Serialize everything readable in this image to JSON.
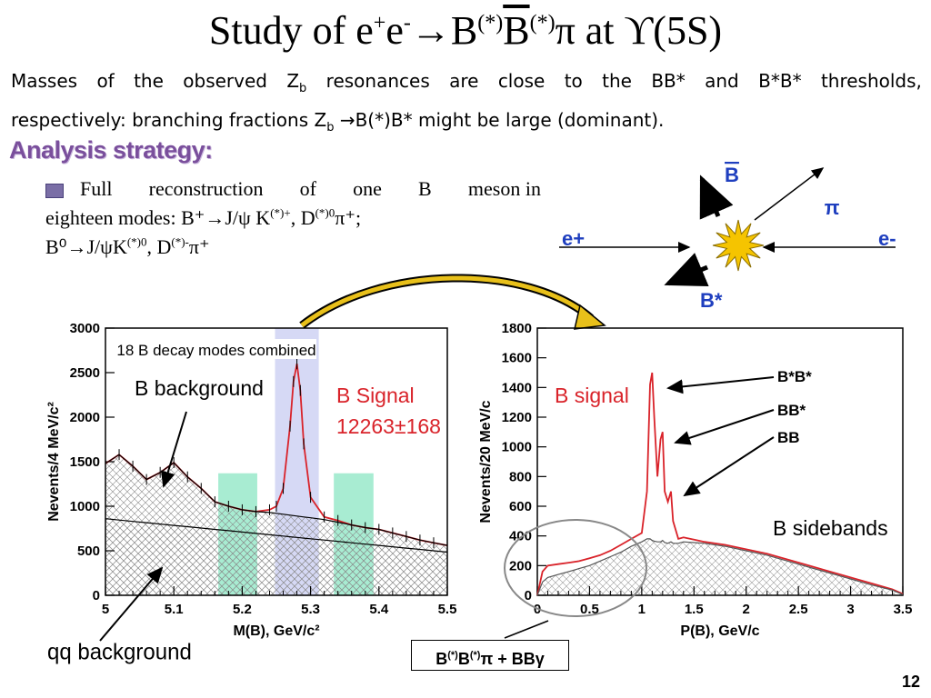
{
  "title": {
    "pre": "Study of e",
    "sup1": "+",
    "e2": "e",
    "sup2": "-",
    "arrow": "→B",
    "sup3": "(*)",
    "bbar": "B",
    "sup4": "(*)",
    "post": "π at ϒ(5S)"
  },
  "intro": {
    "line1_words": [
      "Masses",
      "of",
      "the",
      "observed"
    ],
    "zb": "Z",
    "zb_sub": "b",
    "line1_rest": [
      "resonances",
      "are",
      "close",
      "to",
      "the",
      "BB*",
      "and",
      "B*B*",
      "thresholds,"
    ],
    "line2_a": "respectively: branching fractions ",
    "line2_zb": "Z",
    "line2_sub": "b",
    "line2_b": " →B(*)B* might be large (dominant)."
  },
  "strategy_title": "Analysis strategy:",
  "bullet": {
    "words": [
      "Full",
      "reconstruction",
      "of",
      "one",
      "B",
      "meson in"
    ],
    "line2": "eighteen modes: B⁺→J/ψ K",
    "l2sup": "(*)+",
    "l2b": ", D",
    "l2sup2": "(*)0",
    "l2c": "π⁺;",
    "line3": "B⁰→J/ψK",
    "l3sup": "(*)0",
    "l3b": ", D",
    "l3sup2": "(*)-",
    "l3c": "π⁺"
  },
  "diagram": {
    "bbar": "B",
    "pi": "π",
    "eplus": "e+",
    "eminus": "e-",
    "bstar": "B*",
    "star_color": "#f5c400",
    "label_color": "#1f3fbf"
  },
  "left_plot": {
    "ann_modes": "18 B decay modes combined",
    "ann_bkg": "B  background",
    "ann_signal": "B  Signal",
    "ann_yield": "12263±168",
    "ann_qq": "qq  background"
  },
  "right_plot": {
    "ann_signal": "B signal",
    "ann_bsb": "B sidebands",
    "lab1": "B*B*",
    "lab2": "BB*",
    "lab3": "BB"
  },
  "bbox": {
    "a": "B",
    "s1": "(*)",
    "b": "B",
    "s2": "(*)",
    "c": "π + BBγ"
  },
  "page_number": "12",
  "chart_data": [
    {
      "type": "line",
      "xlabel": "M(B), GeV/c²",
      "ylabel": "Nevents/4 MeV/c²",
      "xlim": [
        5,
        5.5
      ],
      "ylim": [
        0,
        3000
      ],
      "xticks": [
        "5",
        "5.1",
        "5.2",
        "5.3",
        "5.4",
        "5.5"
      ],
      "yticks": [
        "0",
        "500",
        "1000",
        "1500",
        "2000",
        "2500",
        "3000"
      ],
      "x": [
        5.0,
        5.02,
        5.04,
        5.06,
        5.08,
        5.1,
        5.12,
        5.14,
        5.16,
        5.18,
        5.2,
        5.22,
        5.24,
        5.25,
        5.26,
        5.27,
        5.275,
        5.28,
        5.285,
        5.29,
        5.3,
        5.32,
        5.34,
        5.36,
        5.38,
        5.4,
        5.42,
        5.44,
        5.46,
        5.48,
        5.5
      ],
      "series": [
        {
          "values": [
            1480,
            1580,
            1450,
            1300,
            1380,
            1490,
            1330,
            1200,
            1050,
            1000,
            960,
            940,
            960,
            1000,
            1200,
            1900,
            2400,
            2600,
            2300,
            1700,
            1100,
            880,
            840,
            790,
            760,
            740,
            700,
            660,
            620,
            590,
            560
          ]
        },
        {
          "values": [
            1480,
            1580,
            1450,
            1300,
            1380,
            1490,
            1330,
            1200,
            1050,
            1000,
            960,
            940,
            930,
            920,
            910,
            900,
            895,
            890,
            885,
            880,
            870,
            850,
            820,
            790,
            760,
            740,
            700,
            660,
            620,
            590,
            560
          ]
        },
        {
          "values": [
            860,
            845,
            830,
            815,
            800,
            785,
            770,
            755,
            740,
            725,
            710,
            695,
            680,
            672,
            665,
            657,
            653,
            650,
            646,
            642,
            635,
            620,
            605,
            590,
            575,
            560,
            545,
            530,
            515,
            500,
            485
          ]
        }
      ],
      "regions": [
        {
          "type": "sideband",
          "x": [
            5.165,
            5.222
          ]
        },
        {
          "type": "signal",
          "x": [
            5.248,
            5.312
          ]
        },
        {
          "type": "sideband",
          "x": [
            5.334,
            5.392
          ]
        }
      ]
    },
    {
      "type": "line",
      "xlabel": "P(B), GeV/c",
      "ylabel": "Nevents/20 MeV/c",
      "xlim": [
        0,
        3.5
      ],
      "ylim": [
        0,
        1800
      ],
      "xticks": [
        "0",
        "0.5",
        "1",
        "1.5",
        "2",
        "2.5",
        "3",
        "3.5"
      ],
      "yticks": [
        "0",
        "200",
        "400",
        "600",
        "800",
        "1000",
        "1200",
        "1400",
        "1600",
        "1800"
      ],
      "x": [
        0,
        0.05,
        0.1,
        0.2,
        0.3,
        0.4,
        0.5,
        0.6,
        0.7,
        0.8,
        0.9,
        1.0,
        1.05,
        1.08,
        1.1,
        1.12,
        1.15,
        1.18,
        1.2,
        1.22,
        1.25,
        1.28,
        1.3,
        1.35,
        1.4,
        1.6,
        1.8,
        2.0,
        2.2,
        2.4,
        2.6,
        2.8,
        3.0,
        3.2,
        3.4,
        3.5
      ],
      "series": [
        {
          "values": [
            0,
            160,
            200,
            210,
            220,
            230,
            250,
            270,
            300,
            340,
            380,
            420,
            700,
            1420,
            1500,
            1200,
            800,
            1050,
            1100,
            700,
            630,
            700,
            500,
            380,
            390,
            360,
            340,
            310,
            280,
            240,
            200,
            160,
            120,
            80,
            40,
            10
          ]
        },
        {
          "values": [
            0,
            90,
            120,
            140,
            160,
            180,
            200,
            230,
            260,
            290,
            330,
            360,
            380,
            380,
            370,
            365,
            360,
            360,
            370,
            355,
            350,
            360,
            350,
            350,
            360,
            350,
            330,
            300,
            270,
            230,
            190,
            150,
            110,
            70,
            35,
            5
          ]
        }
      ]
    }
  ]
}
